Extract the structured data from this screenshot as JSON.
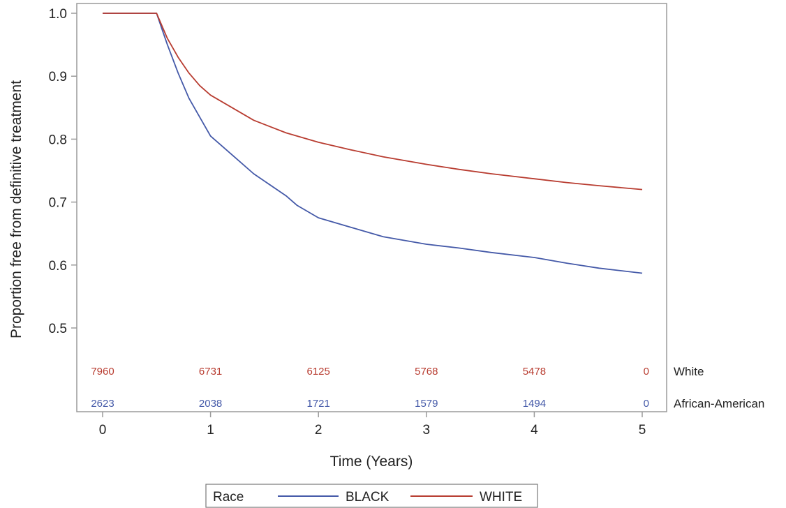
{
  "chart_data": {
    "type": "line",
    "title": "",
    "xlabel": "Time (Years)",
    "ylabel": "Proportion free from definitive treatment",
    "xlim": [
      0,
      5
    ],
    "ylim": [
      0.5,
      1.0
    ],
    "x_ticks": [
      "0",
      "1",
      "2",
      "3",
      "4",
      "5"
    ],
    "y_ticks": [
      "0.5",
      "0.6",
      "0.7",
      "0.8",
      "0.9",
      "1.0"
    ],
    "grid": false,
    "series": [
      {
        "name": "BLACK",
        "color": "#4459a8",
        "x": [
          0,
          0.5,
          0.55,
          0.6,
          0.7,
          0.8,
          0.9,
          1.0,
          1.2,
          1.4,
          1.7,
          1.8,
          2.0,
          2.3,
          2.6,
          3.0,
          3.3,
          3.6,
          4.0,
          4.3,
          4.6,
          5.0
        ],
        "y": [
          1.0,
          1.0,
          0.975,
          0.95,
          0.905,
          0.865,
          0.835,
          0.805,
          0.775,
          0.745,
          0.71,
          0.695,
          0.675,
          0.66,
          0.645,
          0.633,
          0.627,
          0.62,
          0.612,
          0.603,
          0.595,
          0.587
        ]
      },
      {
        "name": "WHITE",
        "color": "#b83c30",
        "x": [
          0,
          0.5,
          0.55,
          0.6,
          0.7,
          0.8,
          0.9,
          1.0,
          1.2,
          1.4,
          1.7,
          2.0,
          2.3,
          2.6,
          3.0,
          3.3,
          3.6,
          4.0,
          4.3,
          4.6,
          5.0
        ],
        "y": [
          1.0,
          1.0,
          0.98,
          0.96,
          0.93,
          0.905,
          0.885,
          0.87,
          0.85,
          0.83,
          0.81,
          0.795,
          0.783,
          0.772,
          0.76,
          0.752,
          0.745,
          0.737,
          0.731,
          0.726,
          0.72
        ]
      }
    ],
    "risk_table": {
      "rows": [
        {
          "label": "White",
          "color": "#b83c30",
          "x": [
            0,
            1,
            2,
            3,
            4,
            5
          ],
          "values": [
            "7960",
            "6731",
            "6125",
            "5768",
            "5478",
            "0"
          ]
        },
        {
          "label": "African-American",
          "color": "#4459a8",
          "x": [
            0,
            1,
            2,
            3,
            4,
            5
          ],
          "values": [
            "2623",
            "2038",
            "1721",
            "1579",
            "1494",
            "0"
          ]
        }
      ]
    },
    "legend": {
      "position": "bottom",
      "title": "Race",
      "entries": [
        {
          "name": "BLACK",
          "color": "#4459a8"
        },
        {
          "name": "WHITE",
          "color": "#b83c30"
        }
      ]
    }
  }
}
